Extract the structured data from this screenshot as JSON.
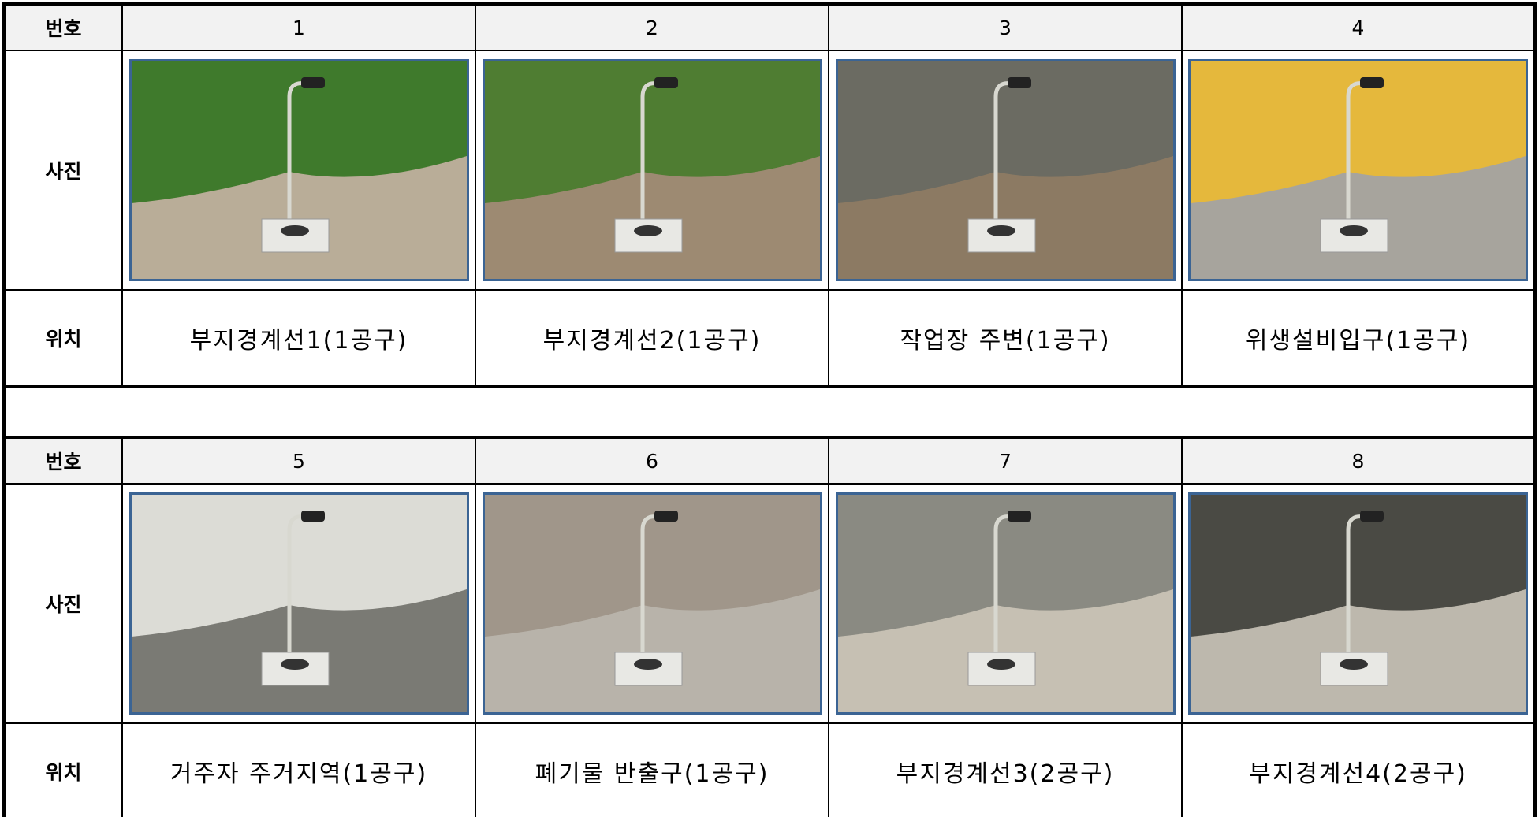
{
  "blocks": [
    {
      "number_label": "번호",
      "photo_label": "사진",
      "location_label": "위치",
      "numbers": [
        1,
        2,
        3,
        4
      ],
      "locations": [
        "부지경계선1(1공구)",
        "부지경계선2(1공구)",
        "작업장 주변(1공구)",
        "위생설비입구(1공구)"
      ]
    },
    {
      "number_label": "번호",
      "photo_label": "사진",
      "location_label": "위치",
      "numbers": [
        5,
        6,
        7,
        8
      ],
      "locations": [
        "거주자 주거지역(1공구)",
        "폐기물 반출구(1공구)",
        "부지경계선3(2공구)",
        "부지경계선4(2공구)"
      ]
    }
  ]
}
